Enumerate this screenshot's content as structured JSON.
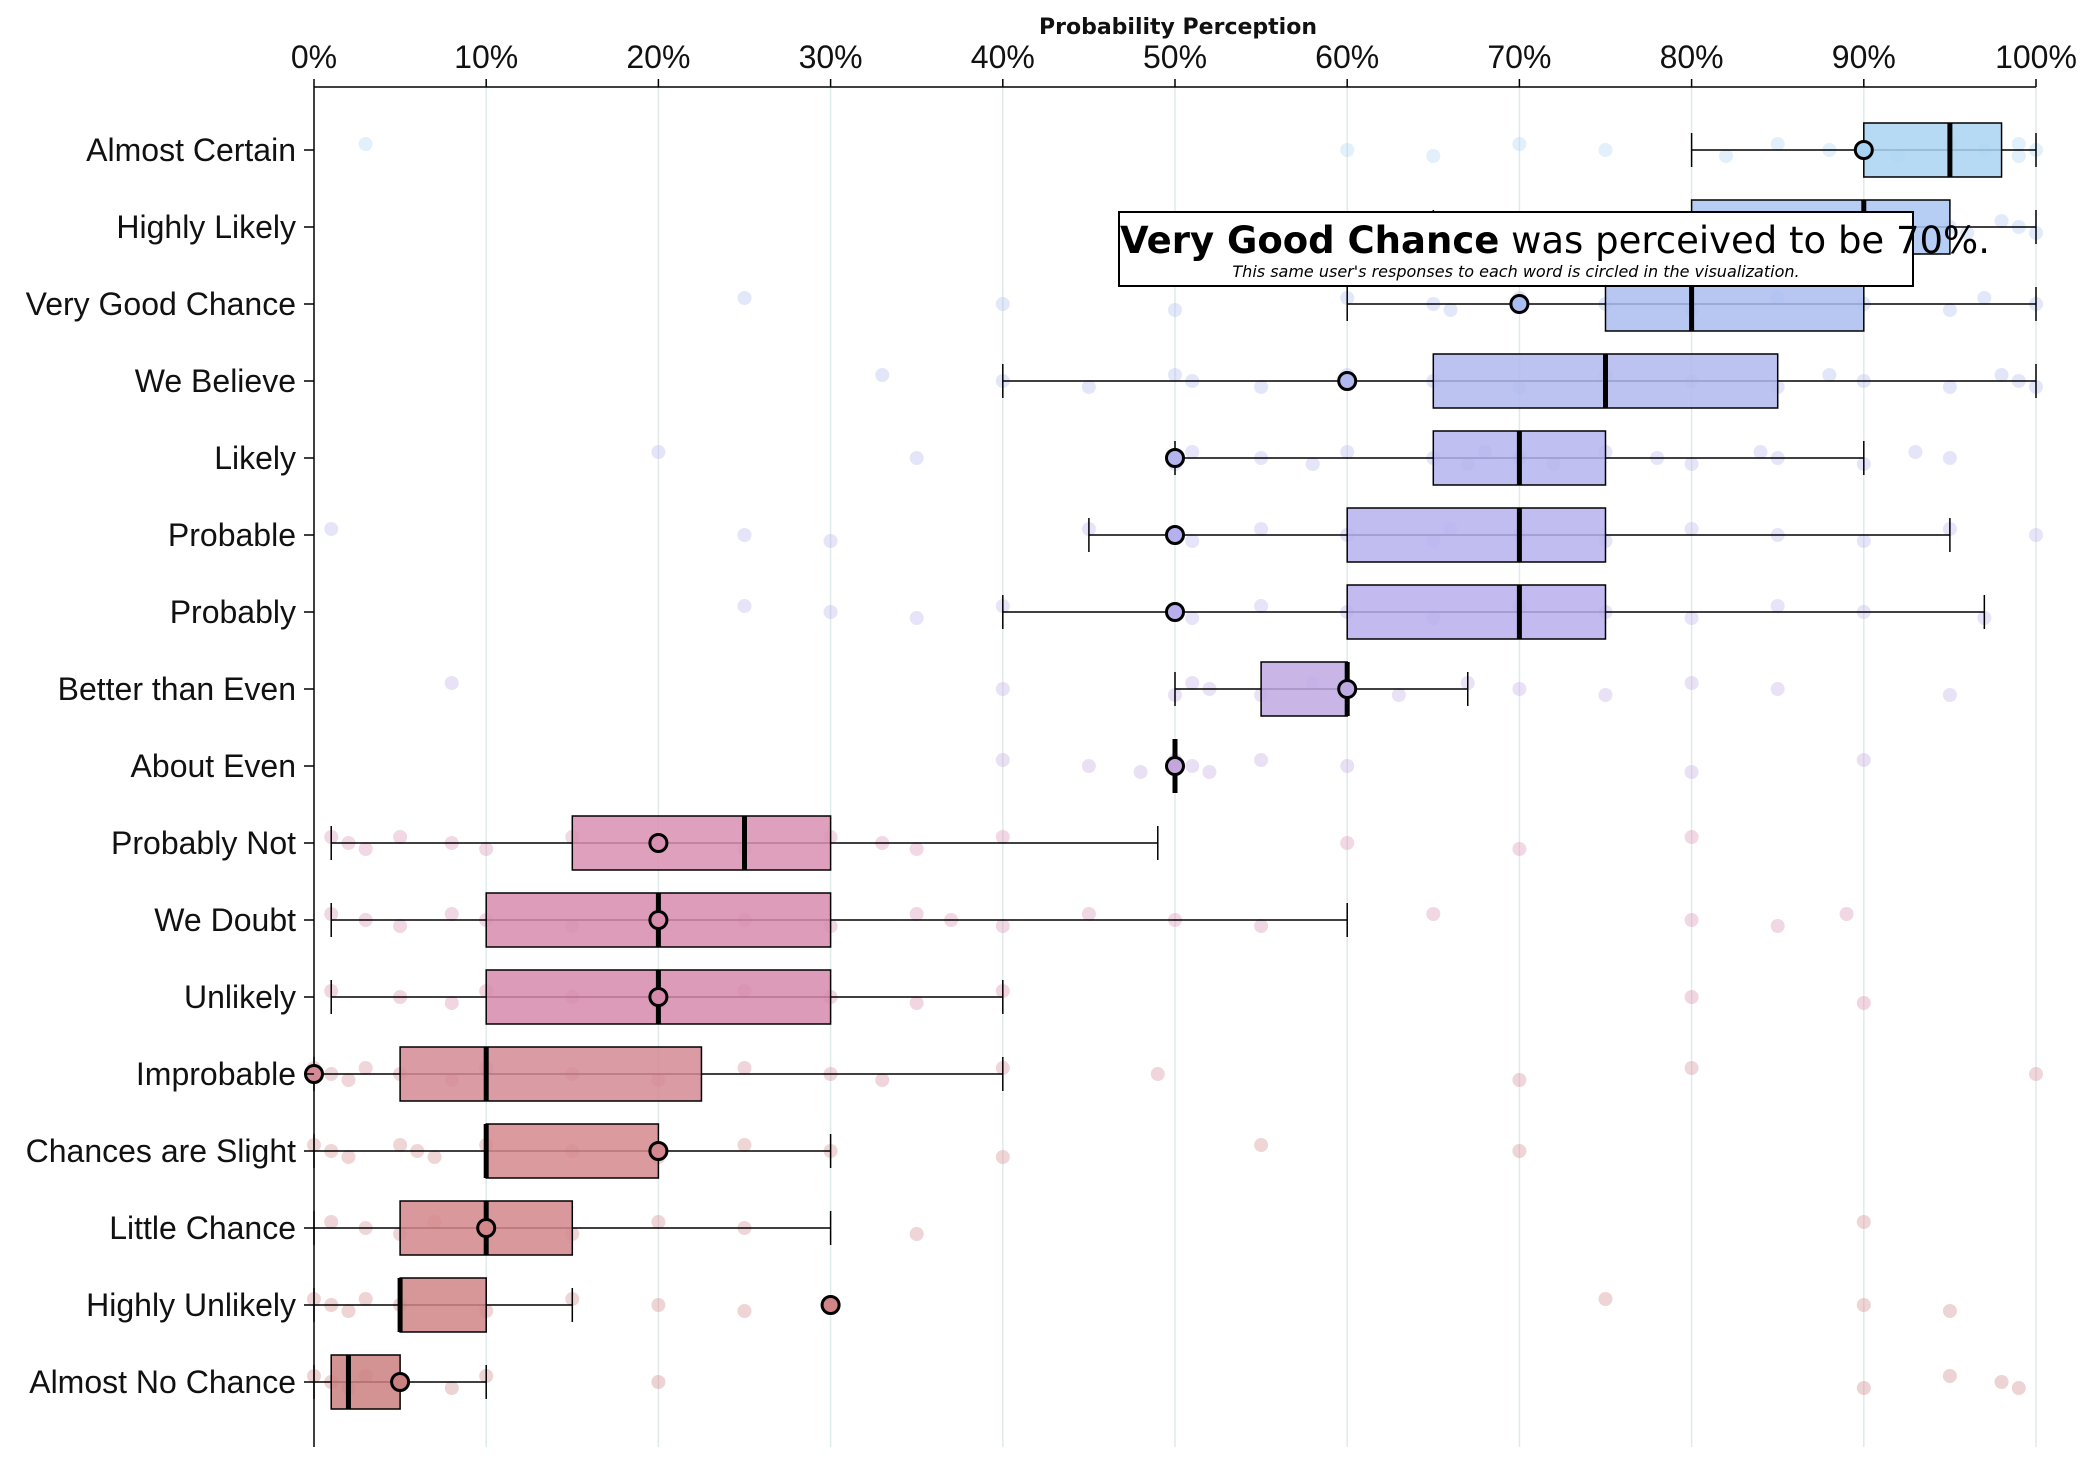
{
  "chart_data": {
    "type": "box",
    "title": "Probability Perception",
    "x_axis": {
      "ticks": [
        "0%",
        "10%",
        "20%",
        "30%",
        "40%",
        "50%",
        "60%",
        "70%",
        "80%",
        "90%",
        "100%"
      ],
      "range": [
        0,
        100
      ],
      "position": "top",
      "grid": true
    },
    "categories": [
      {
        "name": "Almost Certain",
        "whisker_low": 80,
        "q1": 90,
        "median": 95,
        "q3": 98,
        "whisker_high": 100,
        "user": 90,
        "color": "#a9d3f2",
        "points": [
          3,
          60,
          65,
          70,
          75,
          82,
          85,
          88,
          92,
          95,
          97,
          99,
          99,
          100
        ]
      },
      {
        "name": "Highly Likely",
        "whisker_low": 65,
        "q1": 80,
        "median": 90,
        "q3": 95,
        "whisker_high": 100,
        "user": 70,
        "color": "#a9c6f2",
        "points": [
          65,
          70,
          75,
          80,
          85,
          88,
          92,
          95,
          96,
          98,
          99,
          100
        ]
      },
      {
        "name": "Very Good Chance",
        "whisker_low": 60,
        "q1": 75,
        "median": 80,
        "q3": 90,
        "whisker_high": 100,
        "user": 70,
        "color": "#abbdf0",
        "points": [
          25,
          40,
          50,
          60,
          65,
          66,
          70,
          75,
          80,
          85,
          90,
          95,
          97,
          100
        ]
      },
      {
        "name": "We Believe",
        "whisker_low": 40,
        "q1": 65,
        "median": 75,
        "q3": 85,
        "whisker_high": 100,
        "user": 60,
        "color": "#b0b8ef",
        "points": [
          33,
          40,
          45,
          50,
          51,
          55,
          60,
          65,
          70,
          75,
          80,
          85,
          88,
          90,
          95,
          98,
          99,
          100
        ]
      },
      {
        "name": "Likely",
        "whisker_low": 50,
        "q1": 65,
        "median": 70,
        "q3": 75,
        "whisker_high": 90,
        "user": 50,
        "color": "#b4b4ef",
        "points": [
          20,
          35,
          50,
          51,
          55,
          58,
          60,
          65,
          67,
          68,
          70,
          72,
          75,
          78,
          80,
          84,
          85,
          90,
          93,
          95
        ]
      },
      {
        "name": "Probable",
        "whisker_low": 45,
        "q1": 60,
        "median": 70,
        "q3": 75,
        "whisker_high": 95,
        "user": 50,
        "color": "#b6b1ee",
        "points": [
          1,
          25,
          30,
          45,
          50,
          51,
          55,
          60,
          65,
          66,
          70,
          75,
          80,
          85,
          90,
          95,
          100
        ]
      },
      {
        "name": "Probably",
        "whisker_low": 40,
        "q1": 60,
        "median": 70,
        "q3": 75,
        "whisker_high": 97,
        "user": 50,
        "color": "#b9aeec",
        "points": [
          25,
          30,
          35,
          40,
          50,
          51,
          55,
          60,
          65,
          70,
          75,
          80,
          85,
          90,
          97
        ]
      },
      {
        "name": "Better than Even",
        "whisker_low": 50,
        "q1": 55,
        "median": 60,
        "q3": 60,
        "whisker_high": 67,
        "user": 60,
        "color": "#bfa9e3",
        "points": [
          8,
          40,
          50,
          51,
          52,
          55,
          58,
          60,
          63,
          67,
          70,
          75,
          80,
          85,
          95
        ]
      },
      {
        "name": "About Even",
        "whisker_low": 50,
        "q1": 50,
        "median": 50,
        "q3": 50,
        "whisker_high": 50,
        "user": 50,
        "color": "#c4a6dc",
        "points": [
          40,
          45,
          48,
          50,
          51,
          52,
          55,
          60,
          80,
          90
        ]
      },
      {
        "name": "Probably Not",
        "whisker_low": 1,
        "q1": 15,
        "median": 25,
        "q3": 30,
        "whisker_high": 49,
        "user": 20,
        "color": "#d98fb2",
        "points": [
          1,
          2,
          3,
          5,
          8,
          10,
          15,
          20,
          25,
          30,
          33,
          35,
          40,
          60,
          70,
          80
        ]
      },
      {
        "name": "We Doubt",
        "whisker_low": 1,
        "q1": 10,
        "median": 20,
        "q3": 30,
        "whisker_high": 60,
        "user": 20,
        "color": "#d78cae",
        "points": [
          1,
          3,
          5,
          8,
          10,
          15,
          20,
          25,
          30,
          35,
          37,
          40,
          45,
          50,
          55,
          65,
          80,
          85,
          89
        ]
      },
      {
        "name": "Unlikely",
        "whisker_low": 1,
        "q1": 10,
        "median": 20,
        "q3": 30,
        "whisker_high": 40,
        "user": 20,
        "color": "#d68aab",
        "points": [
          1,
          5,
          8,
          10,
          15,
          20,
          25,
          30,
          35,
          40,
          80,
          90
        ]
      },
      {
        "name": "Improbable",
        "whisker_low": 0,
        "q1": 5,
        "median": 10,
        "q3": 22.5,
        "whisker_high": 40,
        "user": 0,
        "color": "#d48a94",
        "points": [
          0,
          1,
          2,
          3,
          5,
          8,
          10,
          15,
          20,
          25,
          30,
          33,
          40,
          49,
          70,
          80,
          100
        ]
      },
      {
        "name": "Chances are Slight",
        "whisker_low": 0,
        "q1": 10,
        "median": 10,
        "q3": 20,
        "whisker_high": 30,
        "user": 20,
        "color": "#d3888d",
        "points": [
          0,
          1,
          2,
          5,
          6,
          7,
          10,
          15,
          20,
          25,
          30,
          40,
          55,
          70
        ]
      },
      {
        "name": "Little Chance",
        "whisker_low": 0,
        "q1": 5,
        "median": 10,
        "q3": 15,
        "whisker_high": 30,
        "user": 10,
        "color": "#d2878b",
        "points": [
          1,
          3,
          5,
          7,
          10,
          15,
          20,
          25,
          35,
          90
        ]
      },
      {
        "name": "Highly Unlikely",
        "whisker_low": 0,
        "q1": 5,
        "median": 5,
        "q3": 10,
        "whisker_high": 15,
        "user": 30,
        "color": "#d08486",
        "points": [
          0,
          1,
          2,
          3,
          5,
          10,
          15,
          20,
          25,
          75,
          90,
          95
        ]
      },
      {
        "name": "Almost No Chance",
        "whisker_low": 0,
        "q1": 1,
        "median": 2,
        "q3": 5,
        "whisker_high": 10,
        "user": 5,
        "color": "#cb8080",
        "points": [
          0,
          1,
          2,
          3,
          5,
          8,
          10,
          20,
          90,
          95,
          98,
          99
        ]
      }
    ]
  },
  "tooltip": {
    "word": "Very Good Chance",
    "text": "was perceived to be 70%.",
    "subtitle": "This same user's responses to each word is circled in the visualization."
  }
}
